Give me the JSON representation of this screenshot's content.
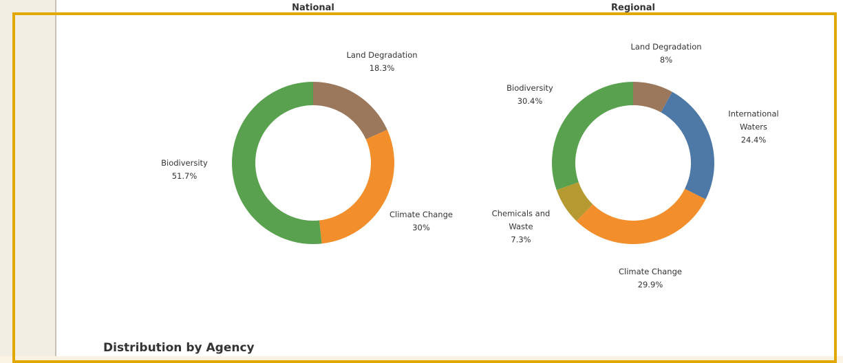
{
  "chart_data": [
    {
      "type": "donut",
      "title": "National",
      "categories": [
        "Land Degradation",
        "Climate Change",
        "Biodiversity"
      ],
      "values": [
        18.3,
        30,
        51.7
      ],
      "value_labels": [
        "18.3%",
        "30%",
        "51.7%"
      ],
      "colors": [
        "#9b775c",
        "#f28e2b",
        "#59a14f"
      ]
    },
    {
      "type": "donut",
      "title": "Regional",
      "categories": [
        "Land Degradation",
        "International Waters",
        "Climate Change",
        "Chemicals and Waste",
        "Biodiversity"
      ],
      "values": [
        8,
        24.4,
        29.9,
        7.3,
        30.4
      ],
      "value_labels": [
        "8%",
        "24.4%",
        "29.9%",
        "7.3%",
        "30.4%"
      ],
      "colors": [
        "#9b775c",
        "#4e79a7",
        "#f28e2b",
        "#b49a30",
        "#59a14f"
      ]
    }
  ],
  "section_heading": "Distribution by Agency"
}
